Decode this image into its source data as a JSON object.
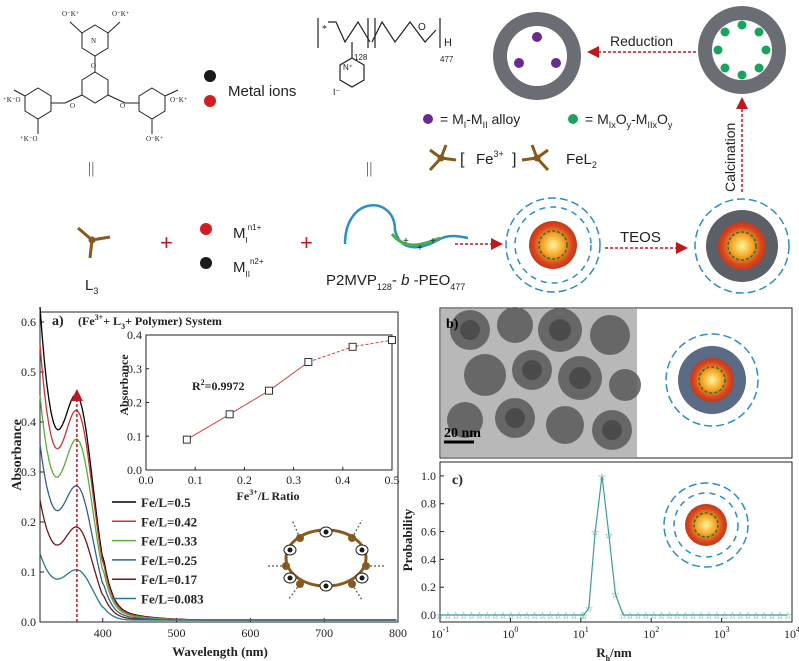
{
  "scheme": {
    "metal_ions_label": "Metal ions",
    "polymer_subscript_128": "128",
    "polymer_subscript_477": "477",
    "polymer_end_group": "H",
    "polymer_counter_ion": "I⁻",
    "legend_alloy": "= M₀-M₁₁ alloy",
    "legend_alloy_parts": [
      "= M",
      "I",
      "-M",
      "II",
      " alloy"
    ],
    "legend_oxide_parts": [
      "= M",
      "Ix",
      "O",
      "y",
      "-M",
      "IIx",
      "O",
      "y"
    ],
    "fe_complex_label": "Fe",
    "fe_charge": "3+",
    "fel2_label": "FeL",
    "fel2_sub": "2",
    "reduction_label": "Reduction",
    "calcination_label": "Calcination",
    "teos_label": "TEOS",
    "ligand_label": "L",
    "ligand_sub": "3",
    "metal1_label": "M",
    "metal1_sub": "I",
    "metal1_sup": "n1+",
    "metal2_label": "M",
    "metal2_sub": "II",
    "metal2_sup": "n2+",
    "polymer_name_parts": [
      "P2MVP",
      "128",
      "- ",
      "b",
      " -PEO",
      "477"
    ],
    "equals_sign": "||"
  },
  "panel_labels": {
    "a": "a)",
    "b": "b)",
    "c": "c)"
  },
  "scale_bar": "20 nm",
  "colors": {
    "black_dot": "#1a1a1a",
    "red_dot": "#d21d25",
    "purple": "#6a2a8f",
    "green": "#1aa35b",
    "ligand_brown": "#8a5a1c",
    "arrow_red": "#c0181e",
    "shell_grey": "#5b5f68",
    "polymer_blue": "#2a8fc4",
    "dls_teal": "#3f9c98"
  },
  "chart_data": [
    {
      "type": "line",
      "title": "(Fe³⁺+ L₃+ Polymer) System",
      "title_parts": [
        "(Fe",
        "3+",
        "+ L",
        "3",
        "+ Polymer) System"
      ],
      "xlabel": "Wavelength (nm)",
      "ylabel": "Absorbance",
      "xlim": [
        315,
        800
      ],
      "ylim": [
        0,
        0.62
      ],
      "xticks": [
        400,
        500,
        600,
        700,
        800
      ],
      "yticks": [
        0.0,
        0.1,
        0.2,
        0.3,
        0.4,
        0.5,
        0.6
      ],
      "marker_line_x": 365,
      "series": [
        {
          "name": "Fe/L=0.5",
          "color": "#000000",
          "peak": 0.385,
          "base": 0.62
        },
        {
          "name": "Fe/L=0.42",
          "color": "#cc3333",
          "peak": 0.365,
          "base": 0.545
        },
        {
          "name": "Fe/L=0.33",
          "color": "#5aae3a",
          "peak": 0.32,
          "base": 0.445
        },
        {
          "name": "Fe/L=0.25",
          "color": "#3a5e8f",
          "peak": 0.235,
          "base": 0.35
        },
        {
          "name": "Fe/L=0.17",
          "color": "#6b1a1a",
          "peak": 0.165,
          "base": 0.24
        },
        {
          "name": "Fe/L=0.083",
          "color": "#2a7a8a",
          "peak": 0.09,
          "base": 0.135
        }
      ]
    },
    {
      "type": "line",
      "title": "inset",
      "xlabel": "Fe³⁺/L Ratio",
      "xlabel_parts": [
        "Fe",
        "3+",
        "/L Ratio"
      ],
      "ylabel": "Absorbance",
      "xlim": [
        0,
        0.5
      ],
      "ylim": [
        0,
        0.4
      ],
      "xticks": [
        0.0,
        0.1,
        0.2,
        0.3,
        0.4,
        0.5
      ],
      "yticks": [
        0.0,
        0.1,
        0.2,
        0.3,
        0.4
      ],
      "annotation": "R²=0.9972",
      "annotation_parts": [
        "R",
        "2",
        "=0.9972"
      ],
      "x": [
        0.083,
        0.17,
        0.25,
        0.33,
        0.42,
        0.5
      ],
      "y": [
        0.09,
        0.165,
        0.235,
        0.32,
        0.365,
        0.385
      ]
    },
    {
      "type": "line",
      "title": "c)",
      "xlabel": "Rₕ/nm",
      "xlabel_parts": [
        "R",
        "h",
        "/nm"
      ],
      "ylabel": "Probability",
      "xscale": "log",
      "xlim": [
        0.1,
        10000
      ],
      "ylim": [
        -0.05,
        1.1
      ],
      "xticks": [
        "10⁻¹",
        "10⁰",
        "10¹",
        "10²",
        "10³",
        "10⁴"
      ],
      "xtick_parts": [
        [
          "10",
          "-1"
        ],
        [
          "10",
          "0"
        ],
        [
          "10",
          "1"
        ],
        [
          "10",
          "2"
        ],
        [
          "10",
          "3"
        ],
        [
          "10",
          "4"
        ]
      ],
      "yticks": [
        0.0,
        0.2,
        0.4,
        0.6,
        0.8,
        1.0
      ],
      "peak_x": 20,
      "x": [
        11,
        13,
        16,
        20,
        25,
        31,
        40
      ],
      "y": [
        0.0,
        0.05,
        0.6,
        1.0,
        0.58,
        0.15,
        0.0
      ]
    }
  ]
}
